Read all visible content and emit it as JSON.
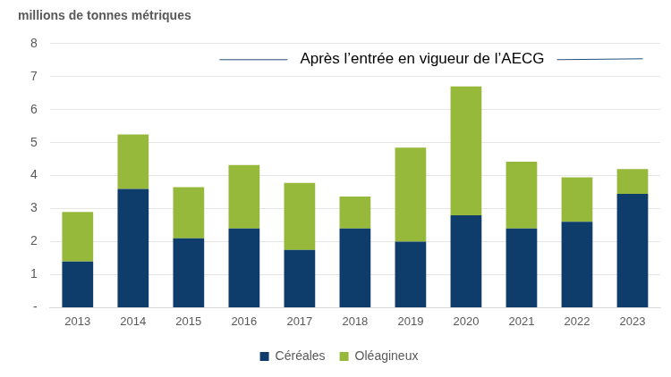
{
  "chart_data": {
    "type": "bar",
    "ylabel": "millions de tonnes métriques",
    "annotation": "Après l’entrée en vigueur de l’AECG",
    "categories": [
      "2013",
      "2014",
      "2015",
      "2016",
      "2017",
      "2018",
      "2019",
      "2020",
      "2021",
      "2022",
      "2023"
    ],
    "series": [
      {
        "name": "Céréales",
        "color": "#0e3c6b",
        "values": [
          1.4,
          3.6,
          2.1,
          2.4,
          1.75,
          2.4,
          2.0,
          2.8,
          2.4,
          2.6,
          3.45
        ]
      },
      {
        "name": "Oléagineux",
        "color": "#97b93b",
        "values": [
          1.5,
          1.65,
          1.55,
          1.92,
          2.03,
          0.97,
          2.85,
          3.9,
          2.02,
          1.35,
          0.75
        ]
      }
    ],
    "stacked": true,
    "ylim": [
      0,
      8
    ],
    "yticks": [
      {
        "value": 0,
        "label": "-"
      },
      1,
      2,
      3,
      4,
      5,
      6,
      7,
      8
    ],
    "grid": true,
    "legend": "bottom"
  }
}
